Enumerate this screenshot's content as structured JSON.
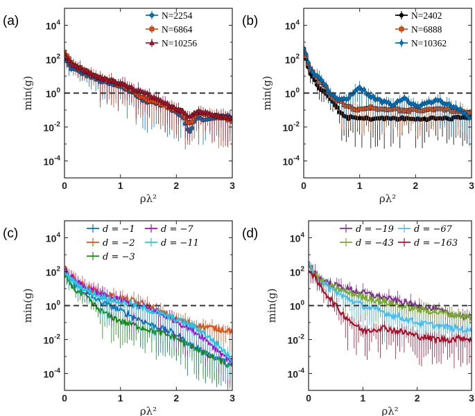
{
  "chart_data": [
    {
      "panel": "(a)",
      "type": "scatter",
      "xlabel": "ρλ²",
      "ylabel": "min(g)",
      "xlim": [
        0,
        3
      ],
      "ylim_log10": [
        -5,
        5
      ],
      "y_scale": "log",
      "x_ticks": [
        0,
        1,
        2,
        3
      ],
      "y_tick_exponents": [
        -4,
        -2,
        0,
        2,
        4
      ],
      "reference_line": {
        "y": 1,
        "style": "dashed"
      },
      "legend_position": "top-right",
      "series": [
        {
          "name": "N=2254",
          "color": "#0072BD",
          "marker": "circle",
          "x": [
            0,
            0.1,
            0.2,
            0.3,
            0.4,
            0.5,
            0.6,
            0.8,
            1.0,
            1.2,
            1.4,
            1.5,
            1.6,
            1.8,
            2.0,
            2.1,
            2.2,
            2.25,
            2.3,
            2.4,
            2.5,
            2.6,
            2.7,
            2.8,
            2.9,
            3.0
          ],
          "y_log10": [
            2.1,
            1.5,
            1.35,
            1.2,
            1.05,
            0.9,
            0.75,
            0.55,
            0.35,
            0.1,
            -0.45,
            -0.5,
            -0.55,
            -0.75,
            -1.15,
            -1.3,
            -2.1,
            -2.3,
            -1.8,
            -1.4,
            -1.6,
            -1.55,
            -1.5,
            -1.3,
            -1.35,
            -1.5
          ]
        },
        {
          "name": "N=6864",
          "color": "#D95319",
          "marker": "square",
          "x": [
            0,
            0.1,
            0.2,
            0.3,
            0.4,
            0.5,
            0.6,
            0.8,
            1.0,
            1.2,
            1.4,
            1.5,
            1.6,
            1.8,
            2.0,
            2.1,
            2.2,
            2.25,
            2.3,
            2.4,
            2.5,
            2.6,
            2.7,
            2.8,
            2.9,
            3.0
          ],
          "y_log10": [
            2.4,
            1.9,
            1.6,
            1.4,
            1.25,
            1.1,
            0.95,
            0.75,
            0.5,
            0.25,
            -0.3,
            -0.4,
            -0.5,
            -0.7,
            -1.0,
            -1.1,
            -1.7,
            -1.8,
            -1.5,
            -1.1,
            -1.25,
            -1.3,
            -1.35,
            -1.45,
            -1.5,
            -1.6
          ]
        },
        {
          "name": "N=10256",
          "color": "#A2142F",
          "marker": "triangle",
          "x": [
            0,
            0.1,
            0.2,
            0.3,
            0.4,
            0.5,
            0.6,
            0.8,
            1.0,
            1.2,
            1.4,
            1.5,
            1.6,
            1.8,
            2.0,
            2.1,
            2.2,
            2.25,
            2.3,
            2.4,
            2.5,
            2.6,
            2.7,
            2.8,
            2.9,
            3.0
          ],
          "y_log10": [
            2.3,
            1.8,
            1.55,
            1.4,
            1.25,
            1.1,
            0.95,
            0.75,
            0.55,
            0.3,
            0.05,
            -0.1,
            -0.3,
            -0.6,
            -0.9,
            -1.0,
            -1.3,
            -1.4,
            -1.2,
            -1.05,
            -1.15,
            -1.2,
            -1.25,
            -1.35,
            -1.4,
            -1.5
          ]
        }
      ]
    },
    {
      "panel": "(b)",
      "type": "scatter",
      "xlabel": "ρλ²",
      "ylabel": "min(g)",
      "xlim": [
        0,
        3
      ],
      "ylim_log10": [
        -5,
        5
      ],
      "y_scale": "log",
      "x_ticks": [
        0,
        1,
        2,
        3
      ],
      "y_tick_exponents": [
        -4,
        -2,
        0,
        2,
        4
      ],
      "reference_line": {
        "y": 1,
        "style": "dashed"
      },
      "legend_position": "top-right",
      "series": [
        {
          "name": "N=2402",
          "color": "#000000",
          "marker": "circle",
          "x": [
            0,
            0.1,
            0.2,
            0.3,
            0.4,
            0.5,
            0.6,
            0.7,
            0.8,
            0.9,
            1.0,
            1.2,
            1.4,
            1.6,
            1.8,
            2.0,
            2.2,
            2.4,
            2.6,
            2.8,
            3.0
          ],
          "y_log10": [
            2.6,
            1.3,
            0.7,
            0.2,
            0.0,
            -0.5,
            -0.9,
            -1.3,
            -1.45,
            -1.45,
            -1.5,
            -1.5,
            -1.5,
            -1.5,
            -1.5,
            -1.55,
            -1.5,
            -1.5,
            -1.5,
            -1.45,
            -1.4
          ]
        },
        {
          "name": "N=6888",
          "color": "#D95319",
          "marker": "square",
          "x": [
            0,
            0.1,
            0.2,
            0.3,
            0.4,
            0.5,
            0.6,
            0.7,
            0.8,
            0.9,
            1.0,
            1.2,
            1.4,
            1.6,
            1.8,
            2.0,
            2.2,
            2.4,
            2.6,
            2.8,
            3.0
          ],
          "y_log10": [
            2.6,
            1.5,
            1.0,
            0.6,
            0.3,
            -0.2,
            -0.4,
            -0.6,
            -0.8,
            -0.9,
            -1.0,
            -0.8,
            -1.0,
            -0.9,
            -1.1,
            -1.0,
            -1.0,
            -0.9,
            -1.0,
            -1.1,
            -1.2
          ]
        },
        {
          "name": "N=10362",
          "color": "#0072BD",
          "marker": "diamond",
          "x": [
            0,
            0.1,
            0.2,
            0.3,
            0.4,
            0.5,
            0.6,
            0.7,
            0.8,
            0.9,
            1.0,
            1.1,
            1.2,
            1.4,
            1.6,
            1.8,
            2.0,
            2.2,
            2.4,
            2.6,
            2.8,
            3.0
          ],
          "y_log10": [
            2.7,
            1.6,
            1.1,
            0.8,
            0.4,
            -0.1,
            -0.3,
            -0.4,
            -0.3,
            0.1,
            0.35,
            0.1,
            -0.2,
            -0.5,
            -0.7,
            -0.3,
            -0.8,
            -0.6,
            -0.4,
            -0.7,
            -1.0,
            -1.5
          ]
        }
      ]
    },
    {
      "panel": "(c)",
      "type": "scatter",
      "xlabel": "ρλ²",
      "ylabel": "min(g)",
      "xlim": [
        0,
        3
      ],
      "ylim_log10": [
        -5,
        5
      ],
      "y_scale": "log",
      "x_ticks": [
        0,
        1,
        2,
        3
      ],
      "y_tick_exponents": [
        -4,
        -2,
        0,
        2,
        4
      ],
      "reference_line": {
        "y": 1,
        "style": "dashed"
      },
      "legend_position": "top-right",
      "series": [
        {
          "name": "d = −1",
          "color": "#0072BD",
          "marker": "none",
          "x": [
            0,
            0.2,
            0.4,
            0.6,
            0.8,
            1.0,
            1.2,
            1.4,
            1.6,
            1.8,
            2.0,
            2.2,
            2.4,
            2.6,
            2.8,
            3.0
          ],
          "y_log10": [
            2.0,
            1.2,
            0.7,
            0.3,
            0.0,
            -0.3,
            -0.6,
            -0.9,
            -1.2,
            -1.4,
            -1.7,
            -2.2,
            -2.6,
            -2.9,
            -3.2,
            -3.6
          ]
        },
        {
          "name": "d = −2",
          "color": "#D95319",
          "marker": "none",
          "x": [
            0,
            0.2,
            0.4,
            0.6,
            0.8,
            1.0,
            1.2,
            1.4,
            1.6,
            1.8,
            2.0,
            2.2,
            2.4,
            2.6,
            2.8,
            3.0
          ],
          "y_log10": [
            2.2,
            1.5,
            1.1,
            0.8,
            0.6,
            0.45,
            0.3,
            0.1,
            -0.2,
            -0.5,
            -0.8,
            -1.0,
            -1.2,
            -1.3,
            -1.4,
            -1.5
          ]
        },
        {
          "name": "d = −3",
          "color": "#1A8C14",
          "marker": "none",
          "x": [
            0,
            0.2,
            0.4,
            0.6,
            0.8,
            1.0,
            1.2,
            1.4,
            1.6,
            1.8,
            2.0,
            2.2,
            2.4,
            2.6,
            2.8,
            3.0
          ],
          "y_log10": [
            1.8,
            0.9,
            0.5,
            -0.2,
            -0.6,
            -0.9,
            -1.1,
            -1.3,
            -1.5,
            -1.7,
            -1.9,
            -2.3,
            -2.6,
            -3.0,
            -3.3,
            -3.7
          ]
        },
        {
          "name": "d = −7",
          "color": "#B400C8",
          "marker": "none",
          "x": [
            0,
            0.2,
            0.4,
            0.6,
            0.8,
            1.0,
            1.2,
            1.4,
            1.6,
            1.8,
            2.0,
            2.2,
            2.4,
            2.6,
            2.8,
            3.0
          ],
          "y_log10": [
            2.1,
            1.4,
            1.0,
            0.7,
            0.5,
            0.3,
            0.1,
            -0.1,
            -0.3,
            -0.6,
            -0.9,
            -1.3,
            -1.7,
            -2.2,
            -2.8,
            -3.3
          ]
        },
        {
          "name": "d = −11",
          "color": "#2BC4E0",
          "marker": "none",
          "x": [
            0,
            0.2,
            0.4,
            0.6,
            0.8,
            1.0,
            1.2,
            1.4,
            1.6,
            1.8,
            2.0,
            2.2,
            2.4,
            2.6,
            2.8,
            3.0
          ],
          "y_log10": [
            2.0,
            1.3,
            0.9,
            0.6,
            0.4,
            0.2,
            0.05,
            -0.15,
            -0.35,
            -0.6,
            -0.8,
            -1.1,
            -1.4,
            -1.9,
            -2.5,
            -3.2
          ]
        }
      ]
    },
    {
      "panel": "(d)",
      "type": "scatter",
      "xlabel": "ρλ²",
      "ylabel": "min(g)",
      "xlim": [
        0,
        3
      ],
      "ylim_log10": [
        -5,
        5
      ],
      "y_scale": "log",
      "x_ticks": [
        0,
        1,
        2,
        3
      ],
      "y_tick_exponents": [
        -4,
        -2,
        0,
        2,
        4
      ],
      "reference_line": {
        "y": 1,
        "style": "dashed"
      },
      "legend_position": "top-right",
      "series": [
        {
          "name": "d = −19",
          "color": "#7E2F8E",
          "marker": "none",
          "x": [
            0,
            0.2,
            0.4,
            0.6,
            0.8,
            1.0,
            1.2,
            1.4,
            1.6,
            1.8,
            2.0,
            2.2,
            2.4,
            2.6,
            2.8,
            3.0
          ],
          "y_log10": [
            2.5,
            1.6,
            1.3,
            1.1,
            0.9,
            0.75,
            0.6,
            0.45,
            0.3,
            0.15,
            0.0,
            -0.15,
            -0.3,
            -0.5,
            -0.6,
            -0.7
          ]
        },
        {
          "name": "d = −43",
          "color": "#77AC30",
          "marker": "none",
          "x": [
            0,
            0.2,
            0.4,
            0.6,
            0.8,
            1.0,
            1.2,
            1.4,
            1.6,
            1.8,
            2.0,
            2.2,
            2.4,
            2.6,
            2.8,
            3.0
          ],
          "y_log10": [
            2.4,
            1.5,
            1.1,
            0.9,
            0.7,
            0.5,
            0.35,
            0.2,
            0.05,
            -0.1,
            -0.2,
            -0.3,
            -0.4,
            -0.5,
            -0.6,
            -0.7
          ]
        },
        {
          "name": "d = −67",
          "color": "#4DBEEE",
          "marker": "none",
          "x": [
            0,
            0.2,
            0.4,
            0.6,
            0.8,
            1.0,
            1.2,
            1.4,
            1.6,
            1.8,
            2.0,
            2.2,
            2.4,
            2.6,
            2.8,
            3.0
          ],
          "y_log10": [
            2.4,
            1.4,
            1.0,
            0.6,
            0.3,
            0.0,
            -0.2,
            -0.4,
            -0.6,
            -0.8,
            -1.0,
            -1.1,
            -1.2,
            -1.3,
            -1.4,
            -1.5
          ]
        },
        {
          "name": "d = −163",
          "color": "#A2142F",
          "marker": "none",
          "x": [
            0,
            0.2,
            0.4,
            0.6,
            0.8,
            1.0,
            1.2,
            1.4,
            1.6,
            1.8,
            2.0,
            2.2,
            2.4,
            2.6,
            2.8,
            3.0
          ],
          "y_log10": [
            2.2,
            1.2,
            0.4,
            -0.4,
            -1.0,
            -1.5,
            -1.4,
            -1.3,
            -1.5,
            -1.6,
            -1.8,
            -1.9,
            -2.0,
            -2.0,
            -1.9,
            -2.0
          ]
        }
      ]
    }
  ]
}
